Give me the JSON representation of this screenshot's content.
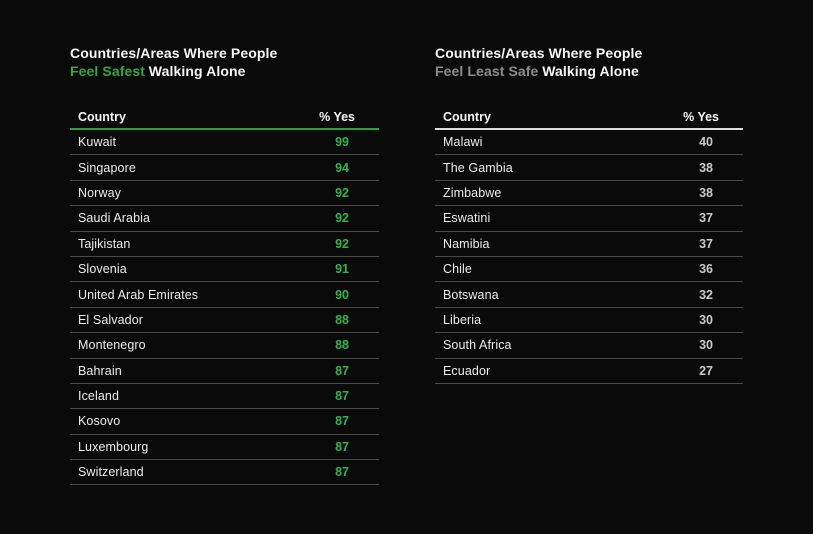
{
  "page": {
    "background": "#0A0A0A"
  },
  "tables": [
    {
      "title_line1": "Countries/Areas Where People",
      "title_highlight": "Feel Safest",
      "title_suffix": "Walking Alone",
      "columns": {
        "country": "Country",
        "value": "% Yes"
      },
      "colors": {
        "highlight": "#31A746",
        "rule": "#2E9E43",
        "value": "#2FB54C"
      },
      "rows": [
        {
          "country": "Kuwait",
          "value": "99"
        },
        {
          "country": "Singapore",
          "value": "94"
        },
        {
          "country": "Norway",
          "value": "92"
        },
        {
          "country": "Saudi Arabia",
          "value": "92"
        },
        {
          "country": "Tajikistan",
          "value": "92"
        },
        {
          "country": "Slovenia",
          "value": "91"
        },
        {
          "country": "United Arab Emirates",
          "value": "90"
        },
        {
          "country": "El Salvador",
          "value": "88"
        },
        {
          "country": "Montenegro",
          "value": "88"
        },
        {
          "country": "Bahrain",
          "value": "87"
        },
        {
          "country": "Iceland",
          "value": "87"
        },
        {
          "country": "Kosovo",
          "value": "87"
        },
        {
          "country": "Luxembourg",
          "value": "87"
        },
        {
          "country": "Switzerland",
          "value": "87"
        }
      ]
    },
    {
      "title_line1": "Countries/Areas Where People",
      "title_highlight": "Feel Least Safe",
      "title_suffix": "Walking Alone",
      "columns": {
        "country": "Country",
        "value": "% Yes"
      },
      "colors": {
        "highlight": "#8D8D8D",
        "rule": "#DCDCDC",
        "value": "#C9C9C9"
      },
      "rows": [
        {
          "country": "Malawi",
          "value": "40"
        },
        {
          "country": "The Gambia",
          "value": "38"
        },
        {
          "country": "Zimbabwe",
          "value": "38"
        },
        {
          "country": "Eswatini",
          "value": "37"
        },
        {
          "country": "Namibia",
          "value": "37"
        },
        {
          "country": "Chile",
          "value": "36"
        },
        {
          "country": "Botswana",
          "value": "32"
        },
        {
          "country": "Liberia",
          "value": "30"
        },
        {
          "country": "South Africa",
          "value": "30"
        },
        {
          "country": "Ecuador",
          "value": "27"
        }
      ]
    }
  ],
  "chart_data": [
    {
      "type": "table",
      "title": "Countries/Areas Where People Feel Safest Walking Alone",
      "columns": [
        "Country",
        "% Yes"
      ],
      "rows": [
        [
          "Kuwait",
          99
        ],
        [
          "Singapore",
          94
        ],
        [
          "Norway",
          92
        ],
        [
          "Saudi Arabia",
          92
        ],
        [
          "Tajikistan",
          92
        ],
        [
          "Slovenia",
          91
        ],
        [
          "United Arab Emirates",
          90
        ],
        [
          "El Salvador",
          88
        ],
        [
          "Montenegro",
          88
        ],
        [
          "Bahrain",
          87
        ],
        [
          "Iceland",
          87
        ],
        [
          "Kosovo",
          87
        ],
        [
          "Luxembourg",
          87
        ],
        [
          "Switzerland",
          87
        ]
      ]
    },
    {
      "type": "table",
      "title": "Countries/Areas Where People Feel Least Safe Walking Alone",
      "columns": [
        "Country",
        "% Yes"
      ],
      "rows": [
        [
          "Malawi",
          40
        ],
        [
          "The Gambia",
          38
        ],
        [
          "Zimbabwe",
          38
        ],
        [
          "Eswatini",
          37
        ],
        [
          "Namibia",
          37
        ],
        [
          "Chile",
          36
        ],
        [
          "Botswana",
          32
        ],
        [
          "Liberia",
          30
        ],
        [
          "South Africa",
          30
        ],
        [
          "Ecuador",
          27
        ]
      ]
    }
  ]
}
